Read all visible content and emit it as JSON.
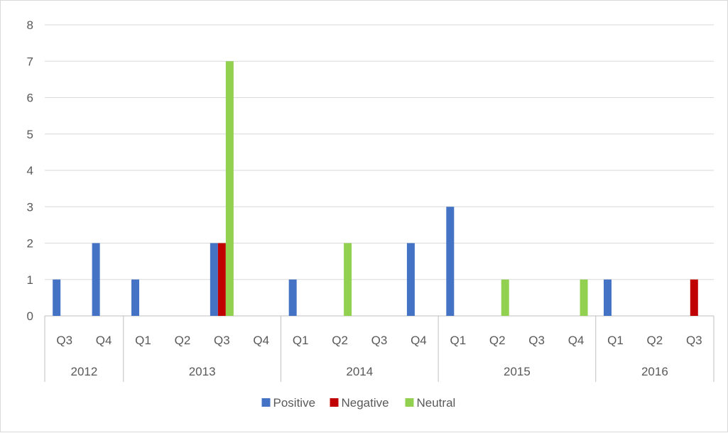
{
  "chart_data": {
    "type": "bar",
    "categories": [
      {
        "year": "2012",
        "quarter": "Q3"
      },
      {
        "year": "2012",
        "quarter": "Q4"
      },
      {
        "year": "2013",
        "quarter": "Q1"
      },
      {
        "year": "2013",
        "quarter": "Q2"
      },
      {
        "year": "2013",
        "quarter": "Q3"
      },
      {
        "year": "2013",
        "quarter": "Q4"
      },
      {
        "year": "2014",
        "quarter": "Q1"
      },
      {
        "year": "2014",
        "quarter": "Q2"
      },
      {
        "year": "2014",
        "quarter": "Q3"
      },
      {
        "year": "2014",
        "quarter": "Q4"
      },
      {
        "year": "2015",
        "quarter": "Q1"
      },
      {
        "year": "2015",
        "quarter": "Q2"
      },
      {
        "year": "2015",
        "quarter": "Q3"
      },
      {
        "year": "2015",
        "quarter": "Q4"
      },
      {
        "year": "2016",
        "quarter": "Q1"
      },
      {
        "year": "2016",
        "quarter": "Q2"
      },
      {
        "year": "2016",
        "quarter": "Q3"
      }
    ],
    "years": [
      "2012",
      "2013",
      "2014",
      "2015",
      "2016"
    ],
    "series": [
      {
        "name": "Positive",
        "color": "#4472c4",
        "values": [
          1,
          2,
          1,
          0,
          2,
          0,
          1,
          0,
          0,
          2,
          3,
          0,
          0,
          0,
          1,
          0,
          0
        ]
      },
      {
        "name": "Negative",
        "color": "#c00000",
        "values": [
          0,
          0,
          0,
          0,
          2,
          0,
          0,
          0,
          0,
          0,
          0,
          0,
          0,
          0,
          0,
          0,
          1
        ]
      },
      {
        "name": "Neutral",
        "color": "#92d050",
        "values": [
          0,
          0,
          0,
          0,
          7,
          0,
          0,
          2,
          0,
          0,
          0,
          1,
          0,
          1,
          0,
          0,
          0
        ]
      }
    ],
    "yticks": [
      "0",
      "1",
      "2",
      "3",
      "4",
      "5",
      "6",
      "7",
      "8"
    ],
    "ylim": [
      0,
      8
    ],
    "title": "",
    "xlabel": "",
    "ylabel": "",
    "grid": true,
    "legend_position": "bottom",
    "gridline_color": "#d9d9d9",
    "axis_color": "#bfbfbf"
  }
}
